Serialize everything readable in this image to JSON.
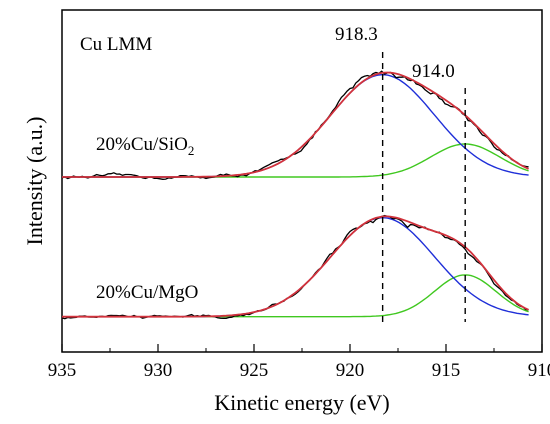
{
  "chart_data": {
    "type": "line",
    "title": "Cu LMM",
    "xlabel": "Kinetic energy (eV)",
    "ylabel": "Intensity (a.u.)",
    "xlim": [
      935,
      910
    ],
    "x_reversed": true,
    "x_ticks": [
      "935",
      "930",
      "925",
      "920",
      "915",
      "910"
    ],
    "y_ticks_shown": false,
    "grid": false,
    "peak_markers": [
      {
        "label": "918.3",
        "x": 918.3,
        "style": "dashed"
      },
      {
        "label": "914.0",
        "x": 914.0,
        "style": "dashed"
      }
    ],
    "spectra": [
      {
        "label_main": "20%Cu/SiO",
        "label_sub": "2",
        "baseline": 0.0,
        "offset": 0.0,
        "peaks": [
          {
            "center": 918.3,
            "sigma": 2.7,
            "height": 0.93
          },
          {
            "center": 914.0,
            "sigma": 1.8,
            "height": 0.3
          }
        ],
        "noise_amplitude": 0.045
      },
      {
        "label_main": "20%Cu/MgO",
        "label_sub": "",
        "baseline": 0.0,
        "offset": -1.27,
        "peaks": [
          {
            "center": 918.3,
            "sigma": 2.7,
            "height": 0.9
          },
          {
            "center": 914.0,
            "sigma": 1.6,
            "height": 0.38
          }
        ],
        "noise_amplitude": 0.04
      }
    ],
    "series_colors": {
      "experimental": "#000000",
      "fit_envelope": "#d2323c",
      "component_918": "#1f2fd8",
      "component_914": "#40c820"
    }
  }
}
